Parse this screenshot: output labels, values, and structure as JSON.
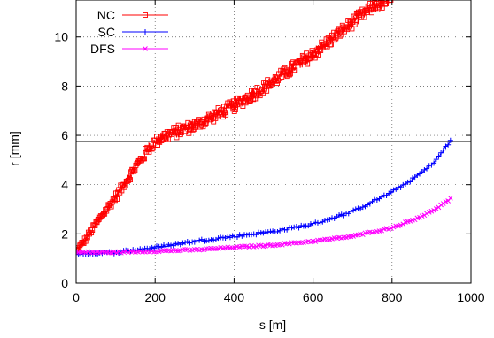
{
  "chart_data": {
    "type": "line",
    "xlabel": "s [m]",
    "ylabel": "r [mm]",
    "xlim": [
      0,
      1000
    ],
    "ylim": [
      0,
      11.5
    ],
    "xticks": [
      0,
      200,
      400,
      600,
      800,
      1000
    ],
    "yticks": [
      0,
      2,
      4,
      6,
      8,
      10
    ],
    "grid": true,
    "legend_position": "top-left",
    "reference_line_y": 5.75,
    "series": [
      {
        "name": "NC",
        "color": "#ff0000",
        "marker": "square",
        "noise": 0.25,
        "x": [
          0,
          20,
          50,
          100,
          150,
          190,
          220,
          300,
          400,
          500,
          600,
          700,
          760,
          800
        ],
        "y": [
          1.3,
          1.7,
          2.4,
          3.5,
          4.7,
          5.6,
          5.95,
          6.4,
          7.2,
          8.2,
          9.3,
          10.6,
          11.3,
          11.5
        ]
      },
      {
        "name": "SC",
        "color": "#0000ff",
        "marker": "plus",
        "noise": 0.05,
        "x": [
          0,
          50,
          100,
          200,
          300,
          400,
          500,
          600,
          700,
          800,
          850,
          900,
          950
        ],
        "y": [
          1.2,
          1.2,
          1.25,
          1.45,
          1.7,
          1.9,
          2.1,
          2.4,
          2.9,
          3.7,
          4.2,
          4.8,
          5.8
        ]
      },
      {
        "name": "DFS",
        "color": "#ff00ff",
        "marker": "cross",
        "noise": 0.03,
        "x": [
          0,
          50,
          100,
          200,
          300,
          400,
          500,
          600,
          700,
          800,
          850,
          900,
          950
        ],
        "y": [
          1.25,
          1.25,
          1.25,
          1.3,
          1.35,
          1.45,
          1.55,
          1.7,
          1.9,
          2.25,
          2.55,
          2.9,
          3.45
        ]
      }
    ]
  }
}
